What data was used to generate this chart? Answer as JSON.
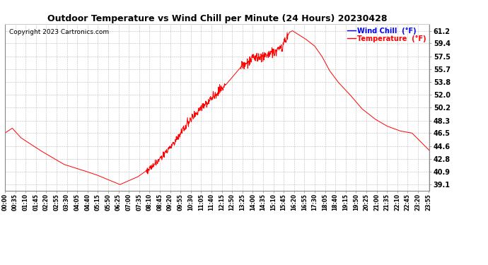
{
  "title": "Outdoor Temperature vs Wind Chill per Minute (24 Hours) 20230428",
  "copyright": "Copyright 2023 Cartronics.com",
  "legend_wind_chill": "Wind Chill  (°F)",
  "legend_temperature": "Temperature  (°F)",
  "wind_chill_color": "blue",
  "temperature_color": "red",
  "line_color": "red",
  "background_color": "white",
  "grid_color": "#aaaaaa",
  "yticks": [
    39.1,
    40.9,
    42.8,
    44.6,
    46.5,
    48.3,
    50.2,
    52.0,
    53.8,
    55.7,
    57.5,
    59.4,
    61.2
  ],
  "ylim": [
    38.2,
    62.2
  ],
  "control_t": [
    0,
    25,
    55,
    120,
    200,
    260,
    310,
    390,
    450,
    510,
    570,
    630,
    700,
    750,
    800,
    840,
    870,
    900,
    940,
    965,
    975,
    990,
    1020,
    1050,
    1075,
    1100,
    1130,
    1170,
    1210,
    1255,
    1295,
    1340,
    1380,
    1415,
    1439
  ],
  "control_v": [
    46.5,
    47.2,
    45.8,
    44.0,
    42.0,
    41.2,
    40.5,
    39.1,
    40.2,
    42.0,
    45.0,
    48.5,
    51.5,
    53.5,
    56.0,
    57.2,
    57.5,
    57.8,
    59.0,
    61.0,
    61.2,
    60.8,
    60.0,
    59.0,
    57.5,
    55.5,
    53.8,
    52.0,
    50.0,
    48.5,
    47.5,
    46.8,
    46.5,
    45.0,
    44.0
  ],
  "noise_seed": 42,
  "xtick_step": 35,
  "title_fontsize": 9,
  "tick_fontsize": 5.5,
  "ytick_fontsize": 7,
  "copyright_fontsize": 6.5,
  "legend_fontsize": 7
}
